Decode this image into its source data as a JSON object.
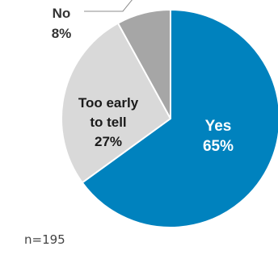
{
  "chart_data": {
    "type": "pie",
    "categories": [
      "Yes",
      "Too early to tell",
      "No"
    ],
    "values": [
      65,
      27,
      8
    ],
    "labels": [
      {
        "lines": [
          "Yes",
          "65%"
        ]
      },
      {
        "lines": [
          "Too early",
          "to tell",
          "27%"
        ]
      },
      {
        "lines": [
          "No",
          "8%"
        ]
      }
    ],
    "colors": [
      "#0082BE",
      "#D9D9D9",
      "#A6A6A6"
    ],
    "label_colors": [
      "#FFFFFF",
      "#1A1A1A",
      "#333333"
    ],
    "start": "12 o'clock, clockwise"
  },
  "note": "n=195"
}
